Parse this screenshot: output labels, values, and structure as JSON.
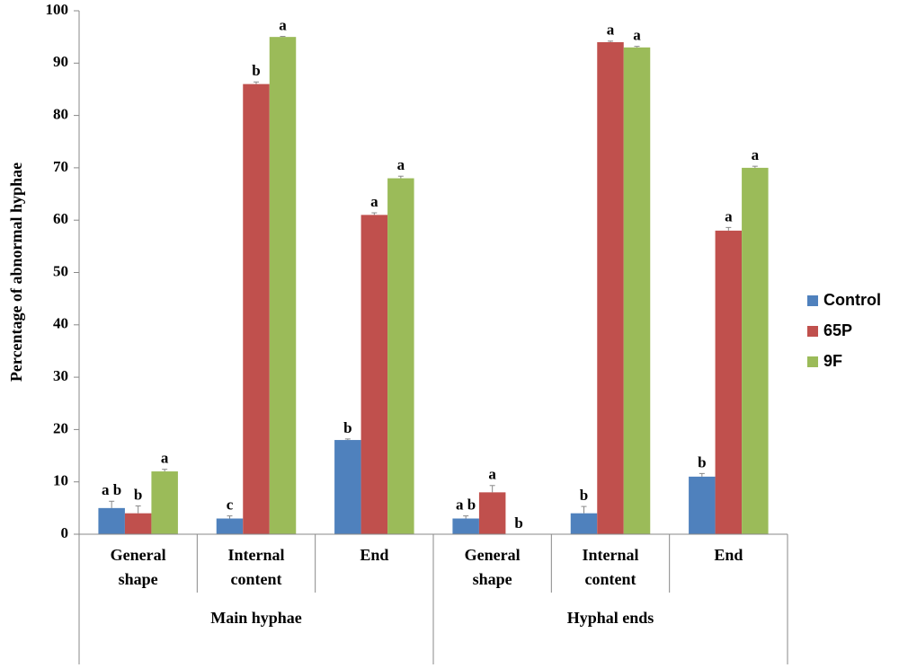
{
  "chart_data": {
    "type": "bar",
    "y_label": "Percentage of abnormal hyphae",
    "groups": [
      {
        "label": "Main hyphae",
        "categories": [
          [
            "General",
            "shape"
          ],
          [
            "Internal",
            "content"
          ],
          [
            "End"
          ]
        ]
      },
      {
        "label": "Hyphal ends",
        "categories": [
          [
            "General",
            "shape"
          ],
          [
            "Internal",
            "content"
          ],
          [
            "End"
          ]
        ]
      }
    ],
    "series": [
      {
        "name": "Control",
        "color": "#4f81bd",
        "values": [
          5,
          3,
          18,
          3,
          4,
          11
        ],
        "errors": [
          1.3,
          0.5,
          0.2,
          0.5,
          1.3,
          0.6
        ],
        "letters": [
          "a b",
          "c",
          "b",
          "a b",
          "b",
          "b"
        ]
      },
      {
        "name": "65P",
        "color": "#c0504d",
        "values": [
          4,
          86,
          61,
          8,
          94,
          58
        ],
        "errors": [
          1.4,
          0.4,
          0.4,
          1.3,
          0.2,
          0.6
        ],
        "letters": [
          "b",
          "b",
          "a",
          "a",
          "a",
          "a"
        ]
      },
      {
        "name": "9F",
        "color": "#9bbb59",
        "values": [
          12,
          95,
          68,
          0,
          93,
          70
        ],
        "errors": [
          0.4,
          0.1,
          0.4,
          0,
          0.2,
          0.3
        ],
        "letters": [
          "a",
          "a",
          "a",
          "b",
          "a",
          "a"
        ]
      }
    ],
    "ylim": [
      0,
      100
    ],
    "yticks": [
      0,
      10,
      20,
      30,
      40,
      50,
      60,
      70,
      80,
      90,
      100
    ],
    "grid": false,
    "legend": "right"
  }
}
